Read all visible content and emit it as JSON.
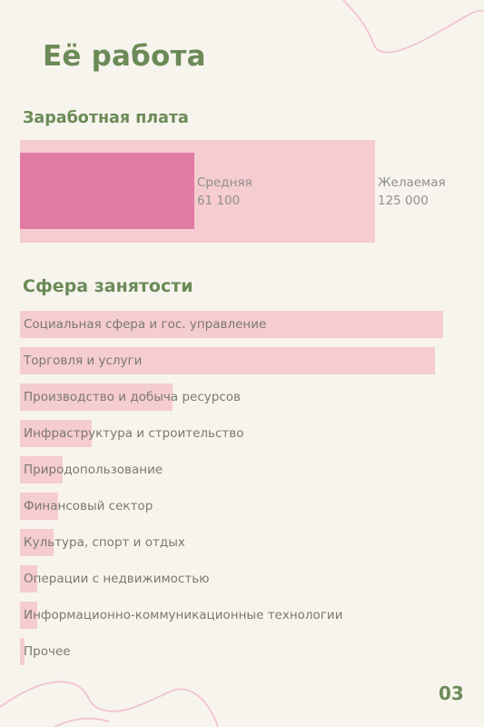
{
  "page": {
    "title": "Её работа",
    "page_number": "03"
  },
  "colors": {
    "accent_green": "#6b8a57",
    "bar_light": "#f5cccf",
    "bar_dark": "#e27ba3",
    "background": "#f7f4ee"
  },
  "salary": {
    "title": "Заработная плата",
    "average": {
      "label": "Средняя",
      "value_text": "61 100",
      "value": 61100
    },
    "desired": {
      "label": "Желаемая",
      "value_text": "125 000",
      "value": 125000
    }
  },
  "sphere": {
    "title": "Сфера занятости"
  },
  "chart_data": {
    "type": "bar",
    "orientation": "horizontal",
    "title": "Сфера занятости",
    "categories": [
      "Социальная сфера и гос. управление",
      "Торговля и услуги",
      "Производство и добыча ресурсов",
      "Инфраструктура и строительство",
      "Природопользование",
      "Финансовый сектор",
      "Культура, спорт и отдых",
      "Операции с недвижимостью",
      "Информационно-коммуникационные технологии",
      "Прочее"
    ],
    "values": [
      100,
      98,
      36,
      17,
      10,
      9,
      8,
      4,
      4,
      1
    ],
    "xlim": [
      0,
      100
    ],
    "grid": false
  }
}
